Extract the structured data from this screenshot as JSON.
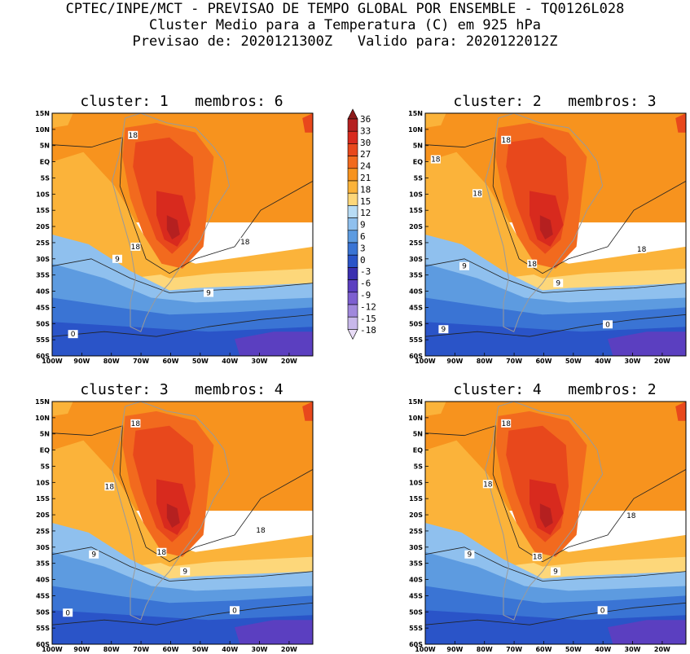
{
  "header": {
    "line1": "CPTEC/INPE/MCT - PREVISAO DE TEMPO GLOBAL POR ENSEMBLE - TQ0126L028",
    "line2": "Cluster Medio para a Temperatura (C) em 925 hPa",
    "line3": "Previsao de: 2020121300Z   Valido para: 2020122012Z"
  },
  "lat_labels": [
    "15N",
    "10N",
    "5N",
    "EQ",
    "5S",
    "10S",
    "15S",
    "20S",
    "25S",
    "30S",
    "35S",
    "40S",
    "45S",
    "50S",
    "55S",
    "60S"
  ],
  "lon_labels": [
    "100W",
    "90W",
    "80W",
    "70W",
    "60W",
    "50W",
    "40W",
    "30W",
    "20W"
  ],
  "colorbar": {
    "levels": [
      "36",
      "33",
      "30",
      "27",
      "24",
      "21",
      "18",
      "15",
      "12",
      "9",
      "6",
      "3",
      "0",
      "-3",
      "-6",
      "-9",
      "-12",
      "-15",
      "-18"
    ],
    "colors": [
      "#8c1a1a",
      "#b52020",
      "#d82a1e",
      "#e8481c",
      "#f26a1e",
      "#f7931e",
      "#fbb33a",
      "#fdd77a",
      "#b8dcf5",
      "#8fc0ee",
      "#5d9be0",
      "#3a74d4",
      "#2a54c8",
      "#3a2fb0",
      "#5b3fc0",
      "#7d5fd0",
      "#a088dc",
      "#c8b8ea",
      "#e8dcf6"
    ]
  },
  "panels": [
    {
      "id": "1",
      "title": "cluster: 1   membros: 6",
      "labels": [
        "18",
        "18",
        "18",
        "9",
        "9",
        "0"
      ]
    },
    {
      "id": "2",
      "title": "cluster: 2   membros: 3",
      "labels": [
        "18",
        "18",
        "18",
        "18",
        "18",
        "9",
        "9",
        "9",
        "0"
      ]
    },
    {
      "id": "3",
      "title": "cluster: 3   membros: 4",
      "labels": [
        "18",
        "18",
        "18",
        "18",
        "9",
        "9",
        "0",
        "0"
      ]
    },
    {
      "id": "4",
      "title": "cluster: 4   membros: 2",
      "labels": [
        "18",
        "18",
        "18",
        "18",
        "9",
        "9",
        "0"
      ]
    }
  ],
  "colors": {
    "orange": "#f7931e",
    "lightorange": "#fbb33a",
    "yellow": "#fdd77a",
    "lightblue": "#8fc0ee",
    "blue": "#5d9be0",
    "midblue": "#3a74d4",
    "deepblue": "#2a54c8",
    "purple": "#5b3fc0",
    "red1": "#f26a1e",
    "red2": "#e8481c",
    "red3": "#d82a1e",
    "red4": "#b52020"
  }
}
